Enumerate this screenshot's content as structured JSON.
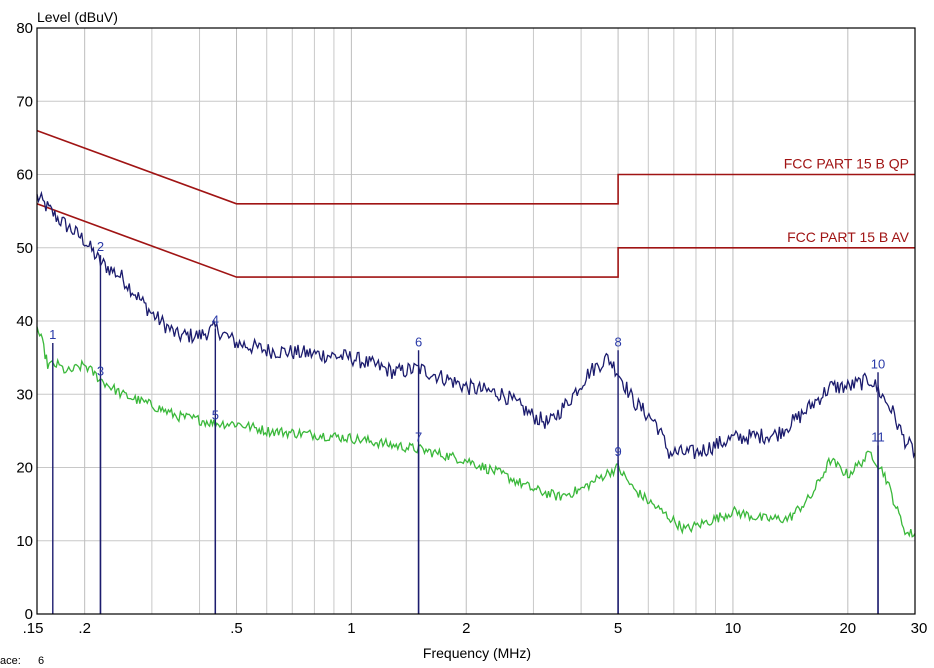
{
  "chart_data": {
    "type": "line",
    "ylabel": "Level (dBuV)",
    "xlabel": "Frequency (MHz)",
    "x_scale": "log",
    "xlim": [
      0.15,
      30
    ],
    "ylim": [
      0,
      80
    ],
    "grid": true,
    "x_ticks": [
      {
        "value": 0.15,
        "label": ".15"
      },
      {
        "value": 0.2,
        "label": ".2"
      },
      {
        "value": 0.5,
        "label": ".5"
      },
      {
        "value": 1,
        "label": "1"
      },
      {
        "value": 2,
        "label": "2"
      },
      {
        "value": 5,
        "label": "5"
      },
      {
        "value": 10,
        "label": "10"
      },
      {
        "value": 20,
        "label": "20"
      },
      {
        "value": 30,
        "label": "30"
      }
    ],
    "x_minor_grid": [
      0.3,
      0.4,
      0.6,
      0.7,
      0.8,
      0.9,
      3,
      4,
      6,
      7,
      8,
      9
    ],
    "y_ticks": [
      0,
      10,
      20,
      30,
      40,
      50,
      60,
      70,
      80
    ],
    "limits": [
      {
        "name": "FCC PART 15 B QP",
        "color": "#a01414",
        "points": [
          [
            0.15,
            66
          ],
          [
            0.5,
            56
          ],
          [
            5,
            56
          ],
          [
            5,
            60
          ],
          [
            30,
            60
          ]
        ]
      },
      {
        "name": "FCC PART 15 B AV",
        "color": "#a01414",
        "points": [
          [
            0.15,
            56
          ],
          [
            0.5,
            46
          ],
          [
            5,
            46
          ],
          [
            5,
            50
          ],
          [
            30,
            50
          ]
        ]
      }
    ],
    "series": [
      {
        "color": "#1c1c6e",
        "points": [
          [
            0.15,
            57
          ],
          [
            0.17,
            54
          ],
          [
            0.2,
            51
          ],
          [
            0.22,
            48
          ],
          [
            0.25,
            46
          ],
          [
            0.3,
            41
          ],
          [
            0.35,
            38
          ],
          [
            0.4,
            38
          ],
          [
            0.44,
            39
          ],
          [
            0.5,
            37
          ],
          [
            0.6,
            36
          ],
          [
            0.8,
            35.5
          ],
          [
            1.0,
            35
          ],
          [
            1.3,
            33
          ],
          [
            1.5,
            33.5
          ],
          [
            1.8,
            32
          ],
          [
            2.0,
            31
          ],
          [
            2.5,
            30
          ],
          [
            3.0,
            27
          ],
          [
            3.3,
            26
          ],
          [
            3.7,
            29
          ],
          [
            4.2,
            33
          ],
          [
            4.7,
            35
          ],
          [
            5.0,
            33
          ],
          [
            5.5,
            29
          ],
          [
            6.3,
            26
          ],
          [
            6.8,
            22
          ],
          [
            8.0,
            22
          ],
          [
            10.0,
            24
          ],
          [
            13.0,
            24.5
          ],
          [
            15.0,
            27
          ],
          [
            18.0,
            31
          ],
          [
            20.0,
            31
          ],
          [
            23.0,
            32
          ],
          [
            26.0,
            28
          ],
          [
            28.0,
            24
          ],
          [
            30.0,
            22
          ]
        ]
      },
      {
        "color": "#3ab83a",
        "points": [
          [
            0.15,
            39
          ],
          [
            0.155,
            37
          ],
          [
            0.16,
            34
          ],
          [
            0.17,
            34
          ],
          [
            0.18,
            33
          ],
          [
            0.2,
            34
          ],
          [
            0.22,
            32
          ],
          [
            0.25,
            30
          ],
          [
            0.3,
            28.5
          ],
          [
            0.35,
            27
          ],
          [
            0.4,
            26.5
          ],
          [
            0.44,
            26
          ],
          [
            0.5,
            26
          ],
          [
            0.6,
            25
          ],
          [
            0.8,
            24.5
          ],
          [
            1.0,
            24
          ],
          [
            1.3,
            23
          ],
          [
            1.5,
            22.5
          ],
          [
            2.0,
            21
          ],
          [
            2.5,
            19
          ],
          [
            3.0,
            17
          ],
          [
            3.5,
            16
          ],
          [
            4.0,
            17
          ],
          [
            4.6,
            19
          ],
          [
            5.0,
            20
          ],
          [
            5.5,
            17
          ],
          [
            6.5,
            14
          ],
          [
            7.5,
            11.5
          ],
          [
            9.0,
            13
          ],
          [
            10.0,
            14
          ],
          [
            12.0,
            13
          ],
          [
            14.0,
            13
          ],
          [
            16.0,
            16
          ],
          [
            18.0,
            21
          ],
          [
            20.0,
            19
          ],
          [
            23.0,
            22
          ],
          [
            25.0,
            19
          ],
          [
            27.0,
            14
          ],
          [
            28.5,
            11
          ],
          [
            30.0,
            11
          ]
        ]
      }
    ],
    "markers": [
      {
        "label": "1",
        "freq": 0.165,
        "level": 37
      },
      {
        "label": "2",
        "freq": 0.22,
        "level": 49
      },
      {
        "label": "3",
        "freq": 0.22,
        "level": 32
      },
      {
        "label": "4",
        "freq": 0.44,
        "level": 39
      },
      {
        "label": "5",
        "freq": 0.44,
        "level": 26
      },
      {
        "label": "6",
        "freq": 1.5,
        "level": 36
      },
      {
        "label": "7",
        "freq": 1.5,
        "level": 23
      },
      {
        "label": "8",
        "freq": 5.0,
        "level": 36
      },
      {
        "label": "9",
        "freq": 5.0,
        "level": 21
      },
      {
        "label": "10",
        "freq": 24.0,
        "level": 33
      },
      {
        "label": "11",
        "freq": 24.0,
        "level": 23
      }
    ],
    "trace_label": "ace:",
    "trace_number": "6",
    "trace_number_color": "#3ab83a"
  }
}
